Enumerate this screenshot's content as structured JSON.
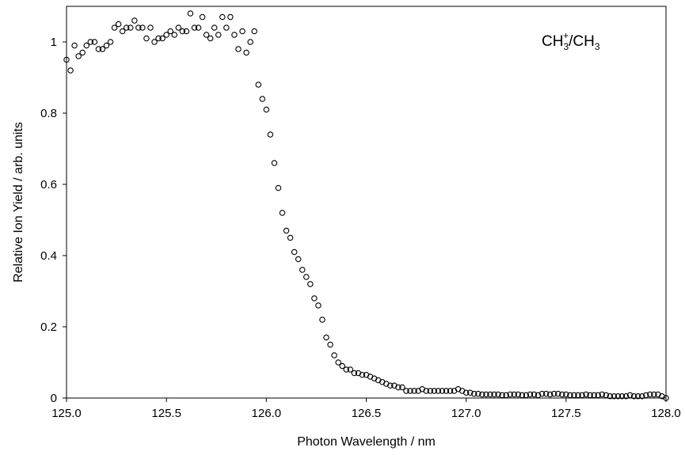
{
  "chart_data": {
    "type": "scatter",
    "title": "",
    "xlabel": "Photon Wavelength / nm",
    "ylabel": "Relative Ion Yield / arb. units",
    "xlim": [
      125.0,
      128.0
    ],
    "ylim": [
      0,
      1.1
    ],
    "x_ticks": [
      "125.0",
      "125.5",
      "126.0",
      "126.5",
      "127.0",
      "127.5",
      "128.0"
    ],
    "y_ticks": [
      "0",
      "0.2",
      "0.4",
      "0.6",
      "0.8",
      "1"
    ],
    "x_tick_values": [
      125.0,
      125.5,
      126.0,
      126.5,
      127.0,
      127.5,
      128.0
    ],
    "y_tick_values": [
      0,
      0.2,
      0.4,
      0.6,
      0.8,
      1.0
    ],
    "grid": false,
    "marker": "open-circle",
    "annotation": {
      "main": "CH",
      "sub1": "3",
      "sup": "+",
      "mid": "/CH",
      "sub2": "3"
    },
    "series": [
      {
        "name": "",
        "x": [
          125.0,
          125.02,
          125.04,
          125.06,
          125.08,
          125.1,
          125.12,
          125.14,
          125.16,
          125.18,
          125.2,
          125.22,
          125.24,
          125.26,
          125.28,
          125.3,
          125.32,
          125.34,
          125.36,
          125.38,
          125.4,
          125.42,
          125.44,
          125.46,
          125.48,
          125.5,
          125.52,
          125.54,
          125.56,
          125.58,
          125.6,
          125.62,
          125.64,
          125.66,
          125.68,
          125.7,
          125.72,
          125.74,
          125.76,
          125.78,
          125.8,
          125.82,
          125.84,
          125.86,
          125.88,
          125.9,
          125.92,
          125.94,
          125.96,
          125.98,
          126.0,
          126.02,
          126.04,
          126.06,
          126.08,
          126.1,
          126.12,
          126.14,
          126.16,
          126.18,
          126.2,
          126.22,
          126.24,
          126.26,
          126.28,
          126.3,
          126.32,
          126.34,
          126.36,
          126.38,
          126.4,
          126.42,
          126.44,
          126.46,
          126.48,
          126.5,
          126.52,
          126.54,
          126.56,
          126.58,
          126.6,
          126.62,
          126.64,
          126.66,
          126.68,
          126.7,
          126.72,
          126.74,
          126.76,
          126.78,
          126.8,
          126.82,
          126.84,
          126.86,
          126.88,
          126.9,
          126.92,
          126.94,
          126.96,
          126.98,
          127.0,
          127.02,
          127.04,
          127.06,
          127.08,
          127.1,
          127.12,
          127.14,
          127.16,
          127.18,
          127.2,
          127.22,
          127.24,
          127.26,
          127.28,
          127.3,
          127.32,
          127.34,
          127.36,
          127.38,
          127.4,
          127.42,
          127.44,
          127.46,
          127.48,
          127.5,
          127.52,
          127.54,
          127.56,
          127.58,
          127.6,
          127.62,
          127.64,
          127.66,
          127.68,
          127.7,
          127.72,
          127.74,
          127.76,
          127.78,
          127.8,
          127.82,
          127.84,
          127.86,
          127.88,
          127.9,
          127.92,
          127.94,
          127.96,
          127.98,
          128.0
        ],
        "y": [
          0.95,
          0.92,
          0.99,
          0.96,
          0.97,
          0.99,
          1.0,
          1.0,
          0.98,
          0.98,
          0.99,
          1.0,
          1.04,
          1.05,
          1.03,
          1.04,
          1.04,
          1.06,
          1.04,
          1.04,
          1.01,
          1.04,
          1.0,
          1.01,
          1.01,
          1.02,
          1.03,
          1.02,
          1.04,
          1.03,
          1.03,
          1.08,
          1.04,
          1.04,
          1.07,
          1.02,
          1.01,
          1.04,
          1.02,
          1.07,
          1.04,
          1.07,
          1.02,
          0.98,
          1.03,
          0.97,
          1.0,
          1.03,
          0.88,
          0.84,
          0.81,
          0.74,
          0.66,
          0.59,
          0.52,
          0.47,
          0.45,
          0.41,
          0.39,
          0.36,
          0.34,
          0.32,
          0.28,
          0.26,
          0.22,
          0.17,
          0.15,
          0.12,
          0.1,
          0.09,
          0.08,
          0.08,
          0.07,
          0.07,
          0.065,
          0.065,
          0.06,
          0.055,
          0.05,
          0.045,
          0.04,
          0.035,
          0.035,
          0.03,
          0.03,
          0.02,
          0.02,
          0.02,
          0.02,
          0.025,
          0.02,
          0.02,
          0.02,
          0.02,
          0.02,
          0.02,
          0.02,
          0.02,
          0.025,
          0.02,
          0.015,
          0.015,
          0.012,
          0.012,
          0.01,
          0.01,
          0.01,
          0.01,
          0.01,
          0.008,
          0.008,
          0.01,
          0.01,
          0.01,
          0.008,
          0.008,
          0.01,
          0.01,
          0.008,
          0.012,
          0.012,
          0.01,
          0.012,
          0.012,
          0.01,
          0.01,
          0.008,
          0.008,
          0.008,
          0.008,
          0.01,
          0.008,
          0.008,
          0.008,
          0.01,
          0.008,
          0.005,
          0.005,
          0.005,
          0.005,
          0.005,
          0.008,
          0.005,
          0.005,
          0.005,
          0.008,
          0.01,
          0.01,
          0.01,
          0.005,
          0.0
        ]
      }
    ]
  }
}
